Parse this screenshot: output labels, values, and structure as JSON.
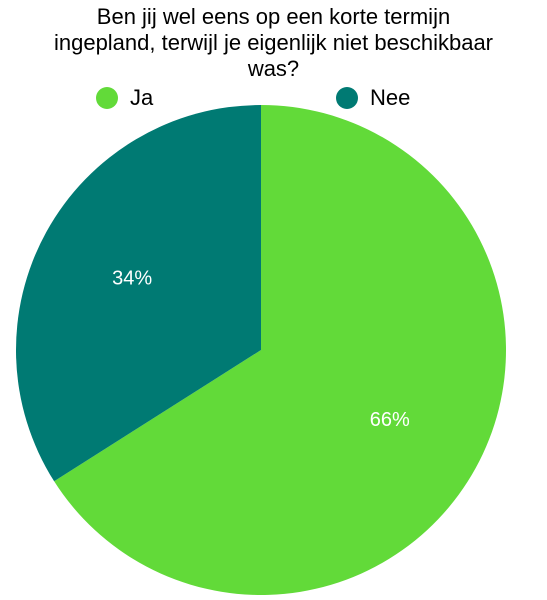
{
  "chart_data": {
    "type": "pie",
    "title_lines": [
      "Ben jij wel eens op een korte termijn",
      "ingepland, terwijl je eigenlijk niet beschikbaar",
      "was?"
    ],
    "legend_position": "top",
    "slices": [
      {
        "label": "Ja",
        "value": 66,
        "value_label": "66%",
        "color": "#62DA39"
      },
      {
        "label": "Nee",
        "value": 34,
        "value_label": "34%",
        "color": "#007A73"
      }
    ]
  }
}
